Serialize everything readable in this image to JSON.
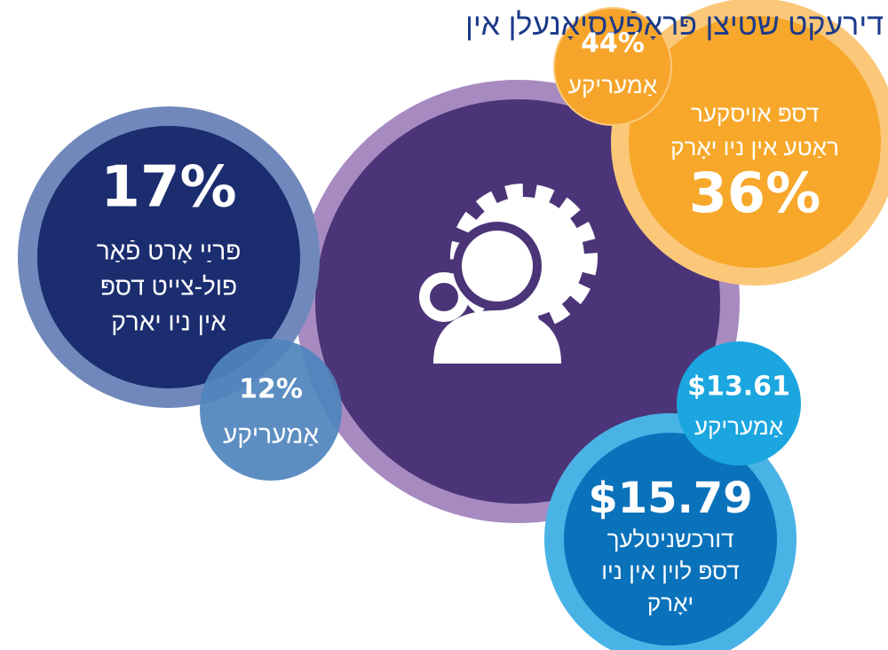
{
  "title": "דירעקט שטיצן פּראָפֿעסיאָנעלן אין",
  "bubbles": [
    {
      "value": "17%",
      "lines": [
        "פּריַי אָרט פֿאַר",
        "פול-צייט דספּ",
        "אין ניו יארק"
      ]
    },
    {
      "value": "12%",
      "lines": [
        "אַמעריקע"
      ]
    },
    {
      "value": "44%",
      "lines": [
        "אַמעריקע"
      ]
    },
    {
      "value": "36%",
      "lines": [
        "דספּ אויסקער",
        "ראַטע אין ניו יאָרק"
      ]
    },
    {
      "value": "$13.61",
      "lines": [
        "אַמעריקע"
      ]
    },
    {
      "value": "$15.79",
      "lines": [
        "דורכשניטלעך",
        "דספּ לוין אין ניו",
        "יאָרק"
      ]
    }
  ]
}
